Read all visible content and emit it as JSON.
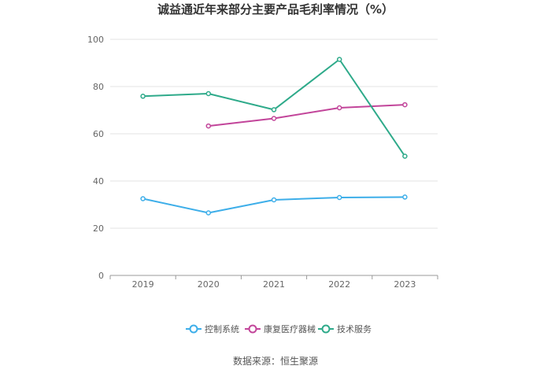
{
  "chart_data": {
    "type": "line",
    "title": "诚益通近年来部分主要产品毛利率情况（%）",
    "categories": [
      "2019",
      "2020",
      "2021",
      "2022",
      "2023"
    ],
    "ylim": [
      0,
      100
    ],
    "yticks": [
      0,
      20,
      40,
      60,
      80,
      100
    ],
    "grid": true,
    "legend_position": "bottom",
    "series": [
      {
        "name": "控制系统",
        "color": "#3daee9",
        "values": [
          32.5,
          26.5,
          32.0,
          33.0,
          33.2
        ]
      },
      {
        "name": "康复医疗器械",
        "color": "#c2459a",
        "values": [
          null,
          63.3,
          66.5,
          71.0,
          72.3
        ]
      },
      {
        "name": "技术服务",
        "color": "#2eaa8a",
        "values": [
          75.9,
          77.0,
          70.2,
          91.5,
          50.5
        ]
      }
    ],
    "source": "数据来源：恒生聚源"
  }
}
